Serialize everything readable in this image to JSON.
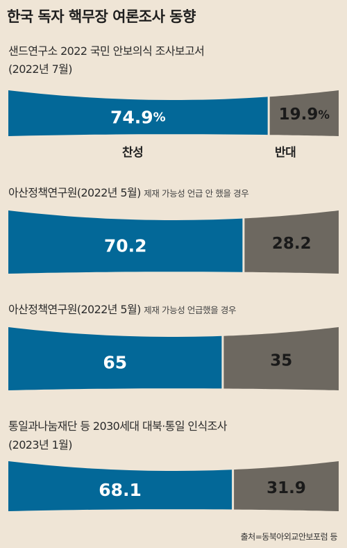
{
  "title": "한국 독자 핵무장 여론조사 동향",
  "footer": "출처=동북아외교안보포럼 등",
  "colors": {
    "support": "#036898",
    "oppose": "#6d6860",
    "label": "#ffffff",
    "oppose_label": "#1a1a1a",
    "background": "#efe5d6"
  },
  "legend": {
    "support": "찬성",
    "oppose": "반대"
  },
  "surveys": [
    {
      "source": "샌드연구소 2022 국민 안보의식 조사보고서",
      "date": "(2022년 7월)",
      "note": ""
    },
    {
      "source": "아산정책연구원(2022년 5월)",
      "date": "",
      "note": "제재 가능성 언급 안 했을 경우"
    },
    {
      "source": "아산정책연구원(2022년 5월)",
      "date": "",
      "note": "제재 가능성 언급했을 경우"
    },
    {
      "source": "통일과나눔재단 등 2030세대 대북·통일 인식조사",
      "date": "(2023년 1월)",
      "note": ""
    }
  ],
  "chart_data": {
    "type": "bar",
    "orientation": "horizontal-stacked",
    "categories": [
      "샌드연구소 2022 국민 안보의식 조사보고서 (2022년 7월)",
      "아산정책연구원(2022년 5월) 제재 가능성 언급 안 했을 경우",
      "아산정책연구원(2022년 5월) 제재 가능성 언급했을 경우",
      "통일과나눔재단 등 2030세대 대북·통일 인식조사 (2023년 1월)"
    ],
    "series": [
      {
        "name": "찬성",
        "values": [
          74.9,
          70.2,
          65,
          68.1
        ],
        "labels": [
          "74.9",
          "70.2",
          "65",
          "68.1"
        ],
        "units": [
          "%",
          "",
          "",
          ""
        ]
      },
      {
        "name": "반대",
        "values": [
          19.9,
          28.2,
          35,
          31.9
        ],
        "labels": [
          "19.9",
          "28.2",
          "35",
          "31.9"
        ],
        "units": [
          "%",
          "",
          "",
          ""
        ]
      }
    ],
    "title": "한국 독자 핵무장 여론조사 동향",
    "xlim": [
      0,
      100
    ]
  }
}
